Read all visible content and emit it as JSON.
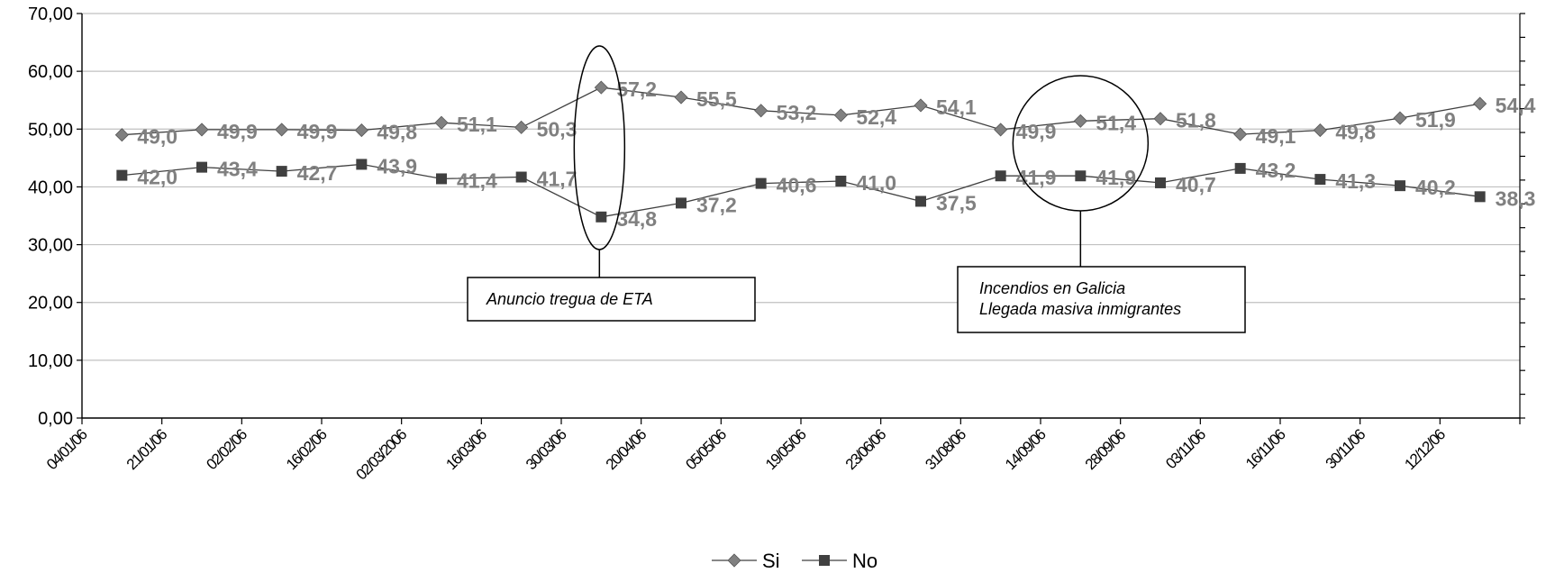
{
  "chart_data": {
    "type": "line",
    "title": "",
    "xlabel": "",
    "ylabel": "",
    "ylim": [
      0,
      70
    ],
    "y_ticks": [
      "0,00",
      "10,00",
      "20,00",
      "30,00",
      "40,00",
      "50,00",
      "60,00",
      "70,00"
    ],
    "categories": [
      "04/01/06",
      "21/01/06",
      "02/02/06",
      "16/02/06",
      "02/03/2006",
      "16/03/06",
      "30/03/06",
      "20/04/06",
      "05/05/06",
      "19/05/06",
      "23/06/06",
      "31/08/06",
      "14/09/06",
      "28/09/06",
      "03/11/06",
      "16/11/06",
      "30/11/06",
      "12/12/06"
    ],
    "grid": "horizontal",
    "legend_position": "bottom",
    "series": [
      {
        "name": "Si",
        "marker": "diamond",
        "color": "#808080",
        "label_color": "#808080",
        "values": [
          49.0,
          49.9,
          49.9,
          49.8,
          51.1,
          50.3,
          57.2,
          55.5,
          53.2,
          52.4,
          54.1,
          49.9,
          51.4,
          51.8,
          49.1,
          49.8,
          51.9,
          54.4
        ],
        "labels": [
          "49,0",
          "49,9",
          "49,9",
          "49,8",
          "51,1",
          "50,3",
          "57,2",
          "55,5",
          "53,2",
          "52,4",
          "54,1",
          "49,9",
          "51,4",
          "51,8",
          "49,1",
          "49,8",
          "51,9",
          "54,4"
        ]
      },
      {
        "name": "No",
        "marker": "square",
        "color": "#404040",
        "label_color": "#808080",
        "values": [
          42.0,
          43.4,
          42.7,
          43.9,
          41.4,
          41.7,
          34.8,
          37.2,
          40.6,
          41.0,
          37.5,
          41.9,
          41.9,
          40.7,
          43.2,
          41.3,
          40.2,
          38.3
        ],
        "labels": [
          "42,0",
          "43,4",
          "42,7",
          "43,9",
          "41,4",
          "41,7",
          "34,8",
          "37,2",
          "40,6",
          "41,0",
          "37,5",
          "41,9",
          "41,9",
          "40,7",
          "43,2",
          "41,3",
          "40,2",
          "38,3"
        ]
      }
    ],
    "annotations": [
      {
        "at_index": 6,
        "shape": "ellipse",
        "lines": [
          "Anuncio tregua de ETA"
        ]
      },
      {
        "at_index": 12,
        "shape": "circle",
        "lines": [
          "Incendios en Galicia",
          "Llegada masiva inmigrantes"
        ]
      }
    ]
  }
}
